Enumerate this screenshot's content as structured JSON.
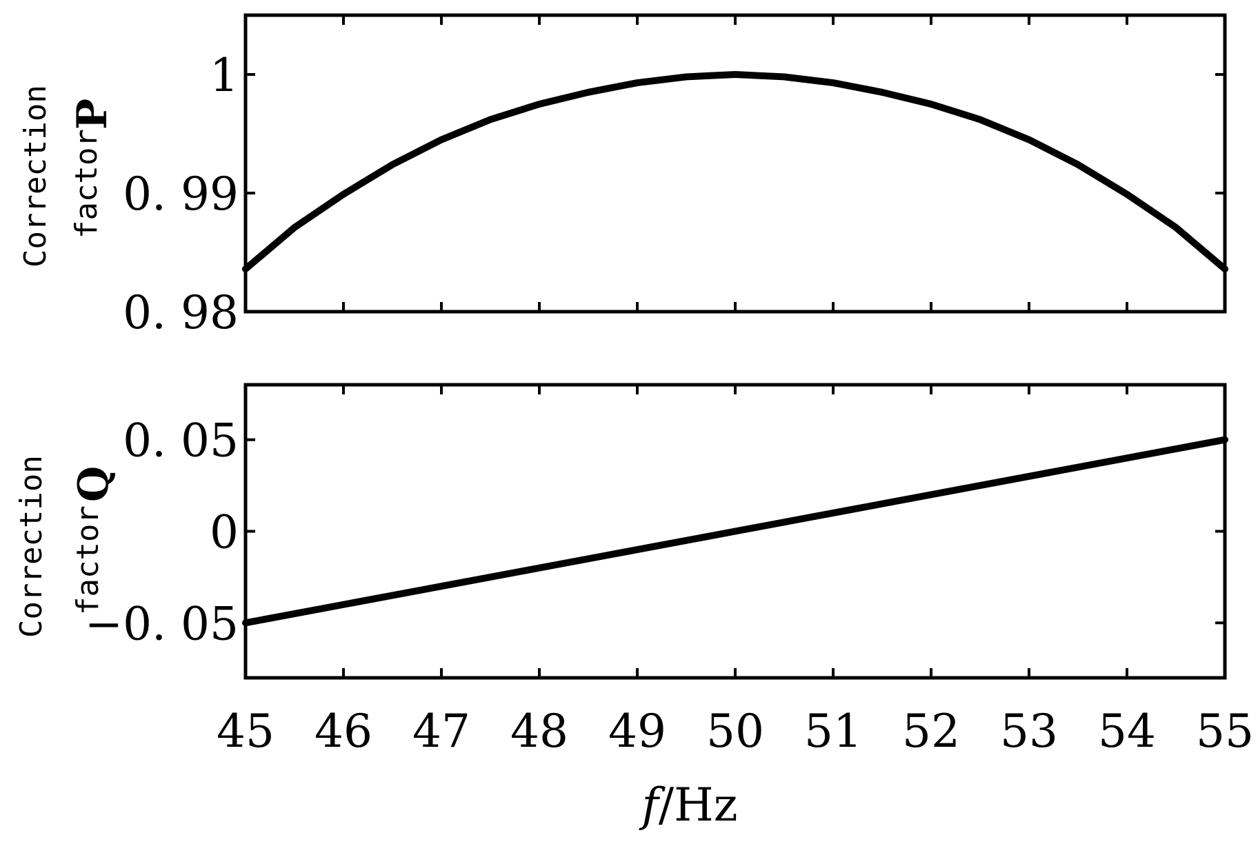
{
  "chart_data": [
    {
      "type": "line",
      "xlabel": "",
      "ylabel": [
        "Correction",
        "factor",
        "P"
      ],
      "xlim": [
        45,
        55
      ],
      "ylim": [
        0.98,
        1.005
      ],
      "yticks": [
        0.98,
        0.99,
        1
      ],
      "ytick_labels": [
        "0. 98",
        "0. 99",
        "1"
      ],
      "xticks": [
        45,
        46,
        47,
        48,
        49,
        50,
        51,
        52,
        53,
        54,
        55
      ],
      "xtick_labels": [],
      "grid": false,
      "series": [
        {
          "x": [
            45,
            45.5,
            46,
            46.5,
            47,
            47.5,
            48,
            48.5,
            49,
            49.5,
            50,
            50.5,
            51,
            51.5,
            52,
            52.5,
            53,
            53.5,
            54,
            54.5,
            55
          ],
          "y": [
            0.9836,
            0.9871,
            0.9899,
            0.9924,
            0.9945,
            0.9962,
            0.9975,
            0.9985,
            0.9993,
            0.9998,
            1.0,
            0.9998,
            0.9993,
            0.9985,
            0.9975,
            0.9962,
            0.9945,
            0.9924,
            0.9899,
            0.9871,
            0.9836
          ]
        }
      ]
    },
    {
      "type": "line",
      "xlabel": "f/Hz",
      "ylabel": [
        "Correction",
        "factor",
        "Q"
      ],
      "xlim": [
        45,
        55
      ],
      "ylim": [
        -0.08,
        0.08
      ],
      "yticks": [
        -0.05,
        0,
        0.05
      ],
      "ytick_labels": [
        "−0. 05",
        "0",
        "0. 05"
      ],
      "xticks": [
        45,
        46,
        47,
        48,
        49,
        50,
        51,
        52,
        53,
        54,
        55
      ],
      "xtick_labels": [
        "45",
        "46",
        "47",
        "48",
        "49",
        "50",
        "51",
        "52",
        "53",
        "54",
        "55"
      ],
      "grid": false,
      "series": [
        {
          "x": [
            45,
            46,
            47,
            48,
            49,
            50,
            51,
            52,
            53,
            54,
            55
          ],
          "y": [
            -0.05,
            -0.04,
            -0.03,
            -0.02,
            -0.01,
            0.0,
            0.01,
            0.02,
            0.03,
            0.04,
            0.05
          ]
        }
      ]
    }
  ],
  "labels": {
    "p_ylabel_line1": "Correction",
    "p_ylabel_line2": "factor",
    "p_ylabel_symbol": "P",
    "q_ylabel_line1": "Correction",
    "q_ylabel_line2": "factor",
    "q_ylabel_symbol": "Q",
    "xlabel_f": "f",
    "xlabel_unit": "/Hz"
  }
}
